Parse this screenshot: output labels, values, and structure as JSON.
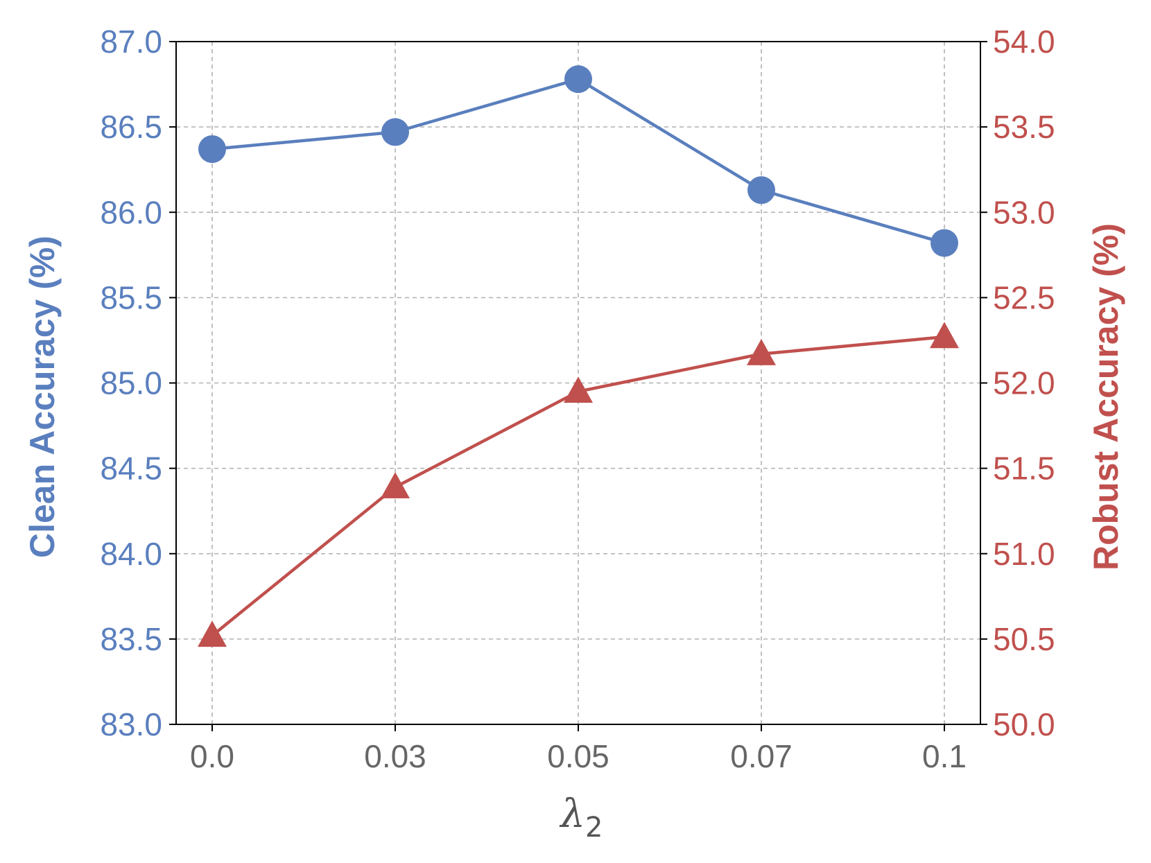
{
  "chart_data": {
    "type": "line",
    "categories": [
      "0.0",
      "0.03",
      "0.05",
      "0.07",
      "0.1"
    ],
    "xlabel": "λ",
    "xlabel_subscript": "2",
    "grid": true,
    "colors": {
      "left": "#5a7fbe",
      "right": "#c0504d",
      "xtick": "#666666",
      "xlabel": "#555555",
      "grid": "#b0b0b0",
      "axis": "#000000"
    },
    "left_axis": {
      "label": "Clean Accuracy (%)",
      "ylim": [
        83.0,
        87.0
      ],
      "ticks": [
        "83.0",
        "83.5",
        "84.0",
        "84.5",
        "85.0",
        "85.5",
        "86.0",
        "86.5",
        "87.0"
      ]
    },
    "right_axis": {
      "label": "Robust Accuracy (%)",
      "ylim": [
        50.0,
        54.0
      ],
      "ticks": [
        "50.0",
        "50.5",
        "51.0",
        "51.5",
        "52.0",
        "52.5",
        "53.0",
        "53.5",
        "54.0"
      ]
    },
    "series": [
      {
        "axis": "left",
        "marker": "circle",
        "color": "#5a7fbe",
        "values": [
          86.37,
          86.47,
          86.78,
          86.13,
          85.82
        ]
      },
      {
        "axis": "right",
        "marker": "triangle",
        "color": "#c0504d",
        "values": [
          50.52,
          51.39,
          51.95,
          52.17,
          52.27
        ]
      }
    ]
  }
}
